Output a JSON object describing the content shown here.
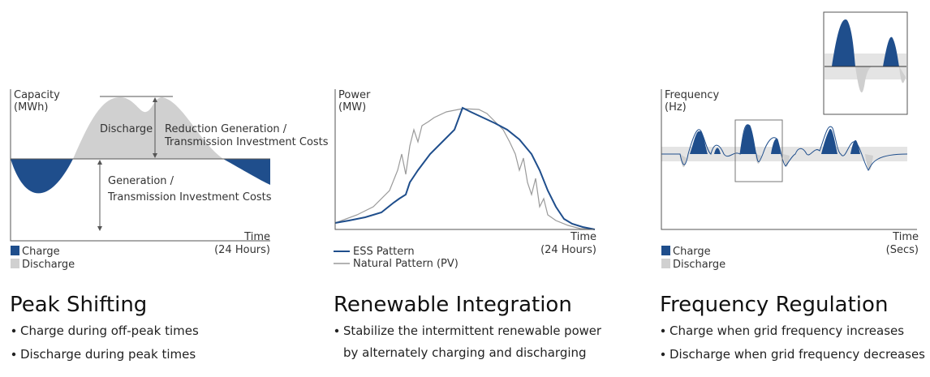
{
  "panels": [
    {
      "y_label": [
        "Capacity",
        "(MWh)"
      ],
      "x_label": [
        "Time",
        "(24 Hours)"
      ],
      "annotations": {
        "discharge": "Discharge",
        "reduction": [
          "Reduction Generation /",
          "Transmission Investment Costs"
        ],
        "generation": [
          "Generation /",
          "Transmission Investment Costs"
        ]
      },
      "legend": [
        "Charge",
        "Discharge"
      ],
      "title": "Peak Shifting",
      "bullets": [
        "Charge during off-peak times",
        "Discharge during peak times"
      ]
    },
    {
      "y_label": [
        "Power",
        "(MW)"
      ],
      "x_label": [
        "Time",
        "(24 Hours)"
      ],
      "legend": [
        "ESS Pattern",
        "Natural Pattern (PV)"
      ],
      "title": "Renewable Integration",
      "bullets": [
        "Stabilize the intermittent renewable power",
        "by alternately charging and discharging"
      ]
    },
    {
      "y_label": [
        "Frequency",
        "(Hz)"
      ],
      "x_label": [
        "Time",
        "(Secs)"
      ],
      "legend": [
        "Charge",
        "Discharge"
      ],
      "title": "Frequency Regulation",
      "bullets": [
        "Charge when grid frequency increases",
        "Discharge when grid frequency decreases"
      ]
    }
  ]
}
